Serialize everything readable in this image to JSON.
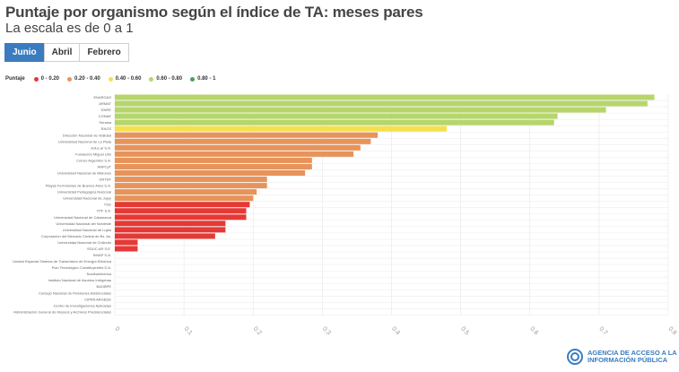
{
  "header": {
    "title": "Puntaje por organismo según el índice de TA: meses pares",
    "subtitle": "La escala es de 0 a 1"
  },
  "tabs": [
    {
      "label": "Junio",
      "active": true
    },
    {
      "label": "Abril",
      "active": false
    },
    {
      "label": "Febrero",
      "active": false
    }
  ],
  "legend": {
    "title": "Puntaje",
    "items": [
      {
        "label": "0 - 0.20",
        "color": "#e53935"
      },
      {
        "label": "0.20 - 0.40",
        "color": "#e8935a"
      },
      {
        "label": "0.40 - 0.60",
        "color": "#f6e04b"
      },
      {
        "label": "0.60 - 0.80",
        "color": "#b6d66b"
      },
      {
        "label": "0.80 - 1",
        "color": "#43a35a"
      }
    ]
  },
  "logo": {
    "line1": "AGENCIA DE ACCESO A LA",
    "line2": "INFORMACIÓN PÚBLICA"
  },
  "chart_data": {
    "type": "bar",
    "orientation": "horizontal",
    "grid": true,
    "xlim": [
      0,
      0.8
    ],
    "xticks": [
      "0",
      "0.1",
      "0.2",
      "0.3",
      "0.4",
      "0.5",
      "0.6",
      "0.7",
      "0.8"
    ],
    "categories": [
      "ENARGAS",
      "ARMAT",
      "ENRE",
      "CONAE",
      "Senasa",
      "RAGS",
      "Dirección Nacional de Vialidad",
      "Universidad Nacional de La Plata",
      "Educ.ar S.A.",
      "Fundación Miguel Lillo",
      "Correo Argentino S.A.",
      "ANPCyT",
      "Universidad Nacional de Misiones",
      "UNTDF",
      "Playas Ferroviarias de Buenos Aires S.A.",
      "Universidad Pedagógica Nacional",
      "Universidad Nacional de Jujuy",
      "TSG",
      "YPF S.A.",
      "Universidad Nacional de Catamarca",
      "Universidad Nacional del Nordeste",
      "Universidad Nacional de Luján",
      "Corporación del Mercado Central de Bs. As.",
      "Universidad Nacional de Chilecito",
      "EDUC.AR S.E.",
      "INVAP S.A.",
      "Unidad Especial Sistema de Transmisión de Energía Eléctrica",
      "Polo Tecnológico Constituyentes S.A.",
      "Nucleoeléctrica",
      "Instituto Nacional de Asuntos Indígenas",
      "BAOBPE",
      "Consejo Nacional de Pensiones Asistenciales",
      "CIPRA ARGEDE",
      "Centro de Investigaciones Aplicadas",
      "Administración General de Museos y Archivos Presidenciales"
    ],
    "values": [
      0.78,
      0.77,
      0.71,
      0.64,
      0.635,
      0.48,
      0.38,
      0.37,
      0.355,
      0.345,
      0.285,
      0.285,
      0.275,
      0.22,
      0.22,
      0.205,
      0.2,
      0.195,
      0.19,
      0.19,
      0.16,
      0.16,
      0.145,
      0.033,
      0.033,
      0,
      0,
      0,
      0,
      0,
      0,
      0,
      0,
      0,
      0
    ]
  }
}
